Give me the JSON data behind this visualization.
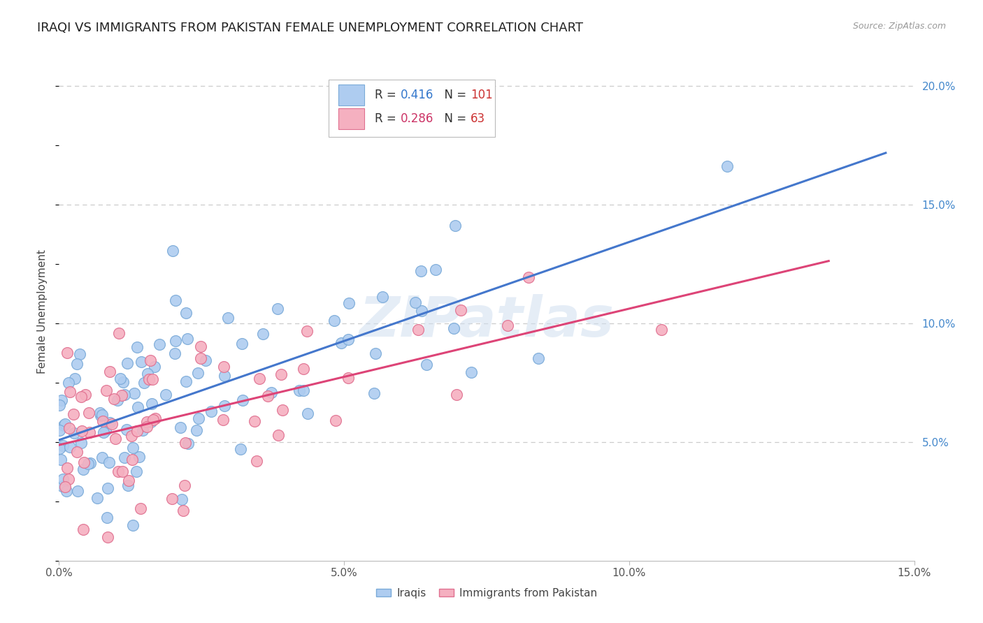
{
  "title": "IRAQI VS IMMIGRANTS FROM PAKISTAN FEMALE UNEMPLOYMENT CORRELATION CHART",
  "source": "Source: ZipAtlas.com",
  "ylabel": "Female Unemployment",
  "watermark": "ZIPatlas",
  "xlim": [
    0.0,
    0.15
  ],
  "ylim": [
    0.0,
    0.21
  ],
  "xticks": [
    0.0,
    0.05,
    0.1,
    0.15
  ],
  "xtick_labels": [
    "0.0%",
    "5.0%",
    "10.0%",
    "15.0%"
  ],
  "yticks_right": [
    0.05,
    0.1,
    0.15,
    0.2
  ],
  "ytick_right_labels": [
    "5.0%",
    "10.0%",
    "15.0%",
    "20.0%"
  ],
  "iraqis_color": "#aeccf0",
  "iraqis_edge": "#7aaad8",
  "pakistan_color": "#f5b0c0",
  "pakistan_edge": "#e07090",
  "iraqis_R": 0.416,
  "iraqis_N": 101,
  "pakistan_R": 0.286,
  "pakistan_N": 63,
  "iraqis_line_color": "#4477cc",
  "pakistan_line_color": "#dd4477",
  "legend_R_color_iraqis": "#3377cc",
  "legend_R_color_pakistan": "#cc3366",
  "legend_N_color_iraqis": "#cc3333",
  "legend_N_color_pakistan": "#cc3333",
  "background_color": "#ffffff",
  "grid_color": "#cccccc",
  "title_fontsize": 13,
  "axis_label_fontsize": 11,
  "tick_fontsize": 11,
  "watermark_color": "#d0dff0",
  "watermark_alpha": 0.55
}
